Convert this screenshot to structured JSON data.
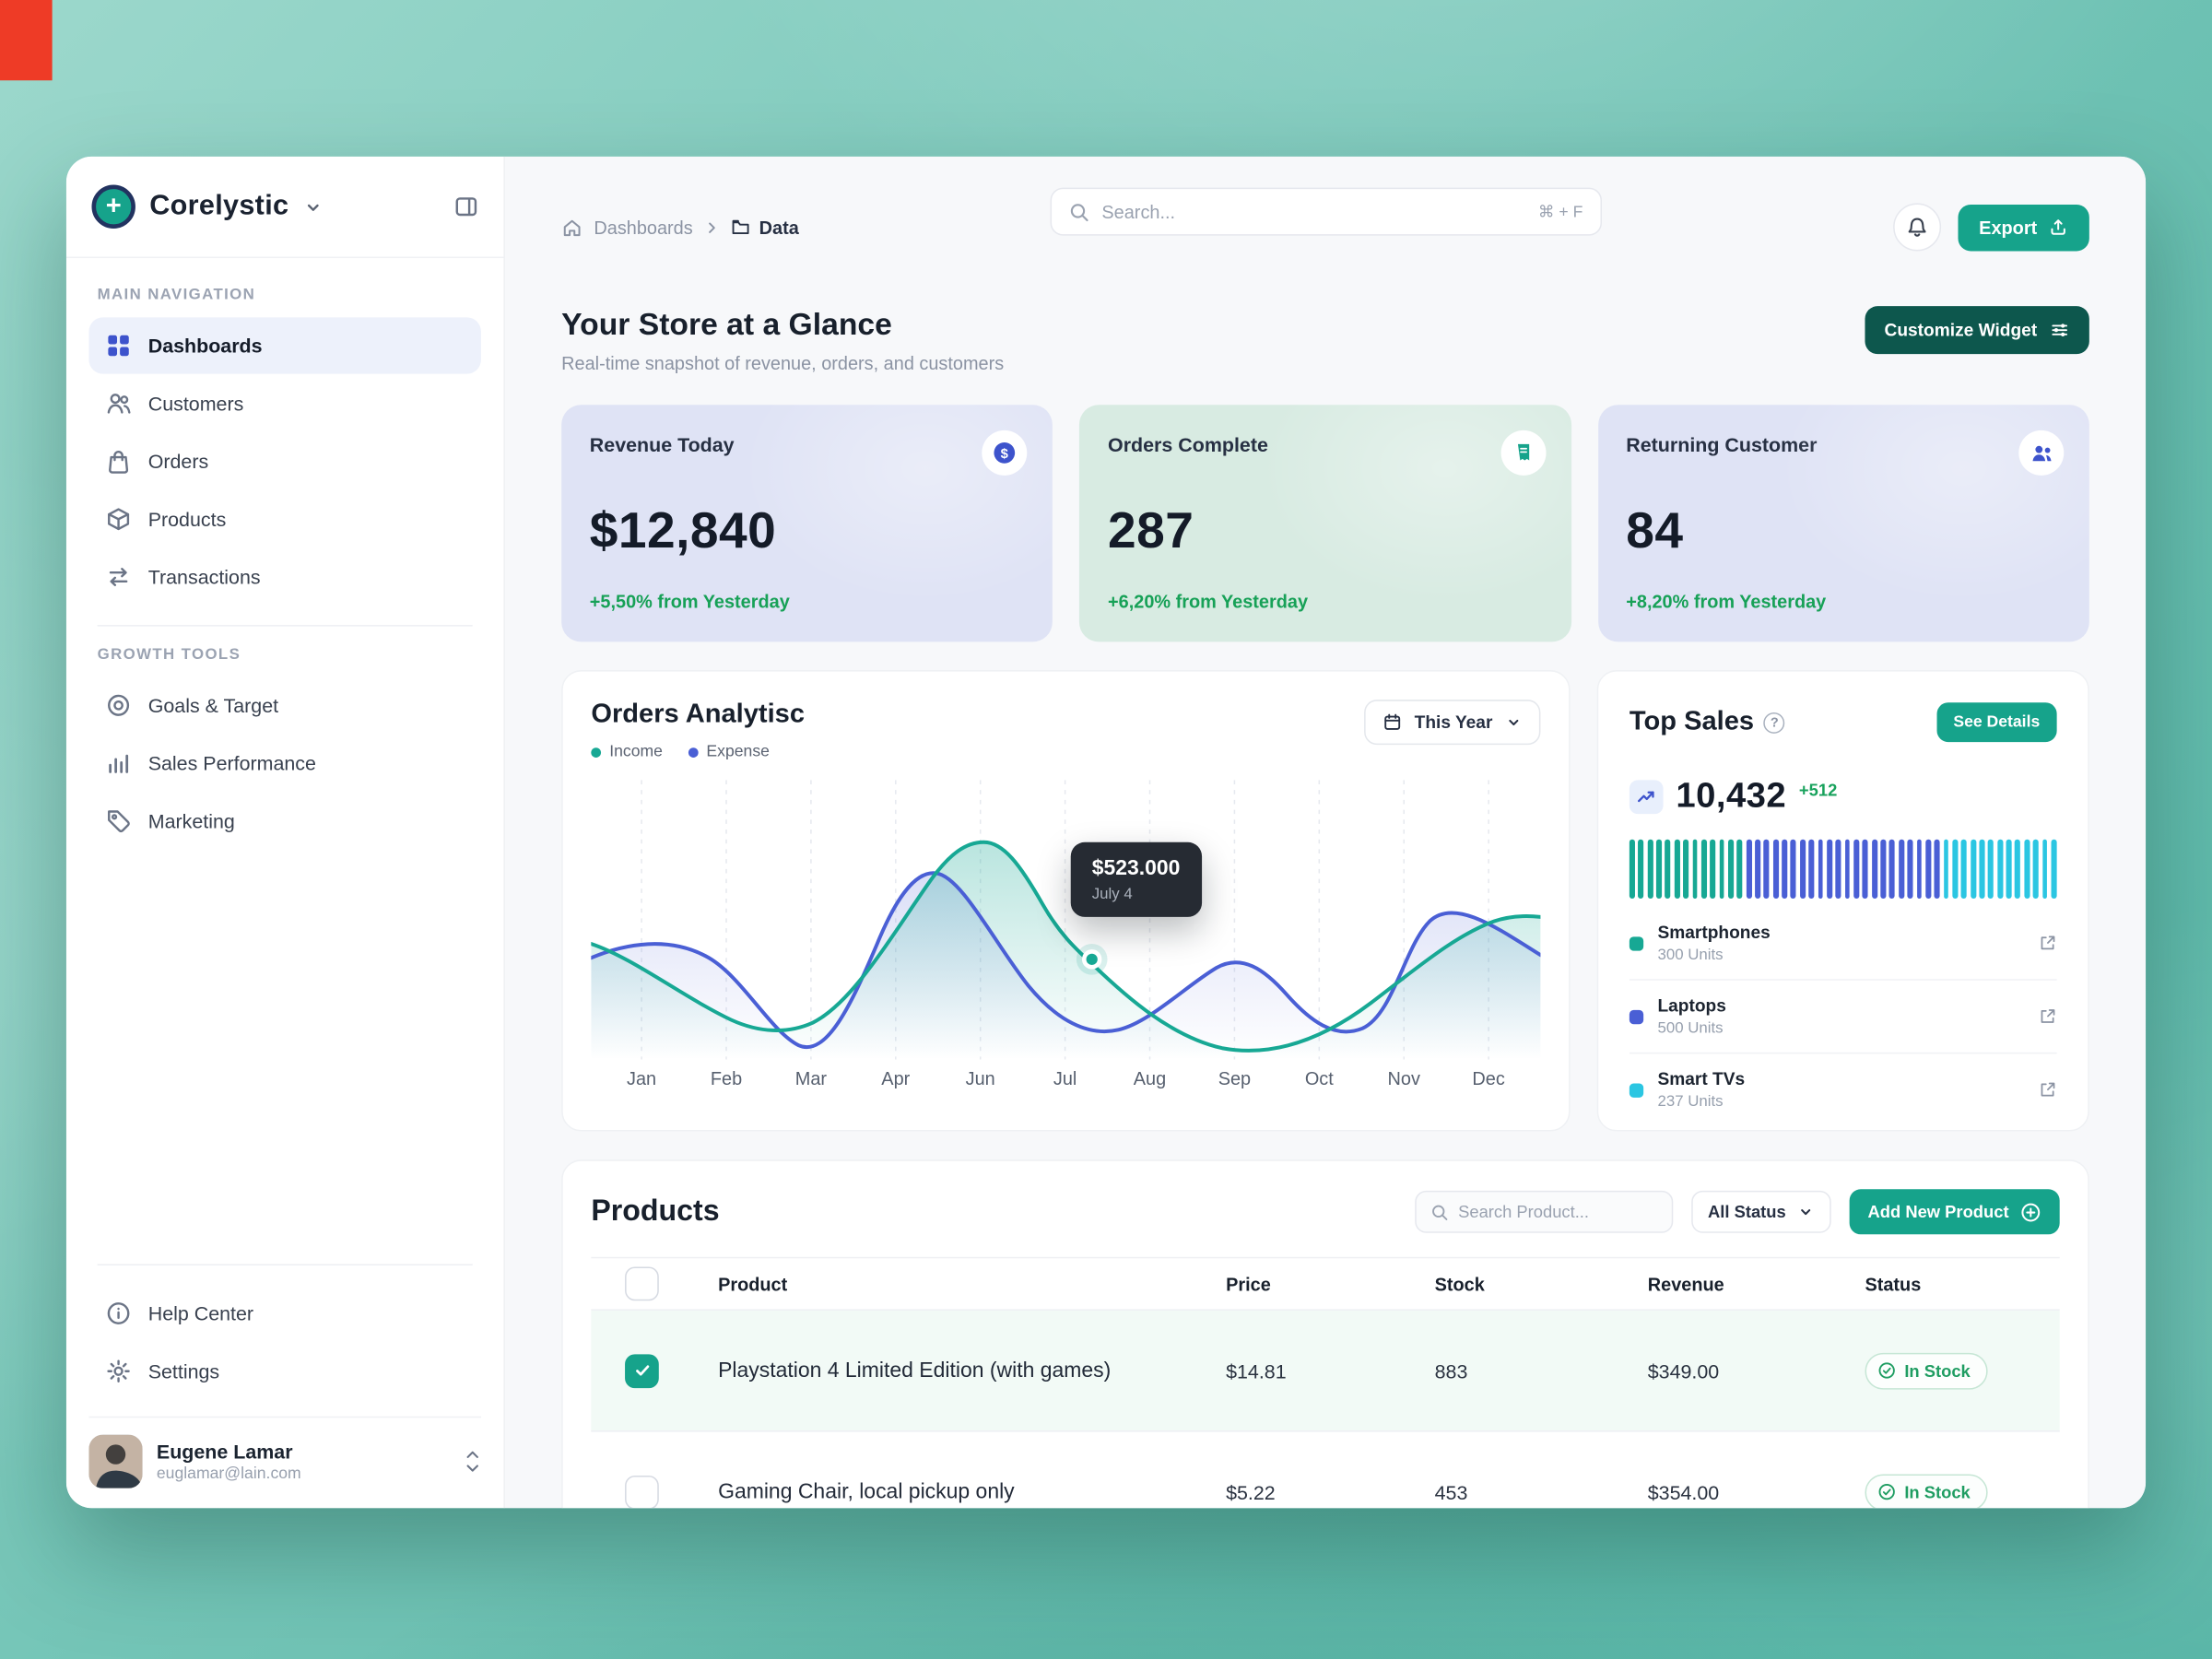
{
  "accent": {
    "teal": "#16A38B",
    "dark_teal": "#0D574D",
    "indigo": "#3D53CC",
    "green_text": "#17A157"
  },
  "sidebar": {
    "brand": "Corelystic",
    "sections": [
      {
        "label": "MAIN NAVIGATION",
        "items": [
          {
            "label": "Dashboards",
            "active": true
          },
          {
            "label": "Customers"
          },
          {
            "label": "Orders"
          },
          {
            "label": "Products"
          },
          {
            "label": "Transactions"
          }
        ]
      },
      {
        "label": "GROWTH TOOLS",
        "items": [
          {
            "label": "Goals & Target"
          },
          {
            "label": "Sales Performance"
          },
          {
            "label": "Marketing"
          }
        ]
      }
    ],
    "footer": [
      {
        "label": "Help Center"
      },
      {
        "label": "Settings"
      }
    ],
    "user": {
      "name": "Eugene Lamar",
      "email": "euglamar@lain.com"
    }
  },
  "header": {
    "breadcrumb_home": "Dashboards",
    "breadcrumb_current": "Data",
    "search_placeholder": "Search...",
    "search_shortcut": "⌘ + F",
    "export_label": "Export"
  },
  "overview": {
    "title": "Your Store at a Glance",
    "subtitle": "Real-time snapshot of revenue, orders, and customers",
    "customize_label": "Customize Widget",
    "stats": [
      {
        "title": "Revenue Today",
        "value": "$12,840",
        "delta": "+5,50% from Yesterday",
        "theme": "lavender"
      },
      {
        "title": "Orders Complete",
        "value": "287",
        "delta": "+6,20% from Yesterday",
        "theme": "mint"
      },
      {
        "title": "Returning Customer",
        "value": "84",
        "delta": "+8,20% from Yesterday",
        "theme": "lavender"
      }
    ]
  },
  "analytics": {
    "title": "Orders Analytisc",
    "legend": [
      {
        "label": "Income",
        "color": "#17A894"
      },
      {
        "label": "Expense",
        "color": "#4A5FD5"
      }
    ],
    "range_label": "This Year",
    "months": [
      "Jan",
      "Feb",
      "Mar",
      "Apr",
      "Jun",
      "Jul",
      "Aug",
      "Sep",
      "Oct",
      "Nov",
      "Dec"
    ],
    "tooltip": {
      "value": "$523.000",
      "date": "July 4"
    }
  },
  "chart_data": {
    "type": "line",
    "x": [
      "Jan",
      "Feb",
      "Mar",
      "Apr",
      "Jun",
      "Jul",
      "Aug",
      "Sep",
      "Oct",
      "Nov",
      "Dec"
    ],
    "series": [
      {
        "name": "Income",
        "color": "#17A894",
        "values_relative": [
          40,
          14,
          10,
          58,
          90,
          40,
          12,
          5,
          16,
          38,
          50
        ]
      },
      {
        "name": "Expense",
        "color": "#4A5FD5",
        "values_relative": [
          36,
          38,
          6,
          52,
          66,
          12,
          10,
          32,
          20,
          52,
          37
        ]
      }
    ],
    "annotation": {
      "x": "July 4",
      "label": "$523.000",
      "series": "Income"
    },
    "legend_position": "top-left",
    "grid": "vertical-dashed",
    "note": "No y-axis labels shown; values are relative estimates from curve heights (0-100)."
  },
  "top_sales": {
    "title": "Top Sales",
    "see_details_label": "See Details",
    "total": "10,432",
    "delta": "+512",
    "bar_segments": [
      {
        "color": "#17A894",
        "count": 13
      },
      {
        "color": "#4A5FD5",
        "count": 22
      },
      {
        "color": "#2BC6E2",
        "count": 13
      }
    ],
    "items": [
      {
        "name": "Smartphones",
        "units": "300 Units",
        "color": "#17A894"
      },
      {
        "name": "Laptops",
        "units": "500 Units",
        "color": "#4A5FD5"
      },
      {
        "name": "Smart TVs",
        "units": "237 Units",
        "color": "#2BC6E2"
      }
    ]
  },
  "products": {
    "title": "Products",
    "search_placeholder": "Search Product...",
    "status_filter_label": "All Status",
    "add_label": "Add New Product",
    "columns": {
      "product": "Product",
      "price": "Price",
      "stock": "Stock",
      "revenue": "Revenue",
      "status": "Status"
    },
    "rows": [
      {
        "name": "Playstation 4 Limited Edition (with games)",
        "price": "$14.81",
        "stock": "883",
        "revenue": "$349.00",
        "status": "In Stock",
        "checked": true
      },
      {
        "name": "Gaming Chair, local pickup only",
        "price": "$5.22",
        "stock": "453",
        "revenue": "$354.00",
        "status": "In Stock",
        "checked": false
      }
    ]
  }
}
